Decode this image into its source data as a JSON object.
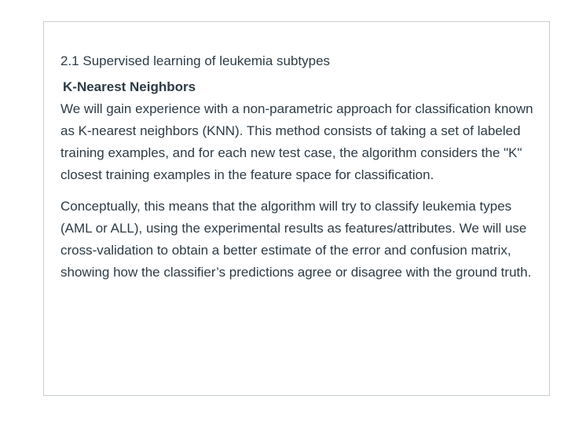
{
  "document": {
    "section_title": "2.1 Supervised learning of leukemia subtypes",
    "subheading": "K-Nearest Neighbors",
    "paragraphs": [
      "We will gain experience with a non-parametric approach for classification known as K-nearest neighbors (KNN). This method consists of taking a set of labeled training examples, and for each new test case, the algorithm considers the \"K\" closest training examples in the feature space for classification.",
      "Conceptually, this means that the algorithm will try to classify leukemia types (AML or ALL), using the experimental results as features/attributes. We will use cross-validation to obtain a better estimate of the error and confusion matrix, showing how the classifier’s predictions agree or disagree with the ground truth."
    ]
  }
}
